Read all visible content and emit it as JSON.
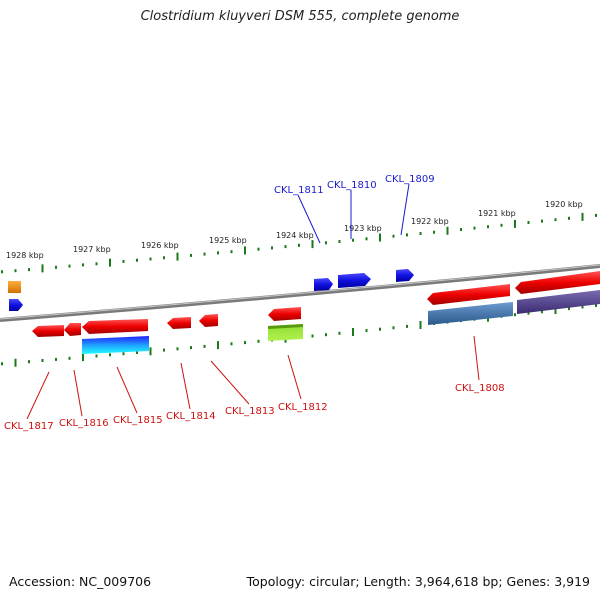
{
  "title": "Clostridium kluyveri DSM 555, complete genome",
  "footer": {
    "accession": "Accession: NC_009706",
    "summary": "Topology: circular; Length: 3,964,618 bp; Genes: 3,919"
  },
  "scale_labels": [
    "1928 kbp",
    "1927 kbp",
    "1926 kbp",
    "1925 kbp",
    "1924 kbp",
    "1923 kbp",
    "1922 kbp",
    "1921 kbp",
    "1920 kbp"
  ],
  "gene_labels": {
    "top": [
      "CKL_1811",
      "CKL_1810",
      "CKL_1809"
    ],
    "bottom": [
      "CKL_1817",
      "CKL_1816",
      "CKL_1815",
      "CKL_1814",
      "CKL_1813",
      "CKL_1812",
      "CKL_1808"
    ]
  },
  "colors": {
    "forward_gene_top": "#1010e0",
    "reverse_gene": "#e01010",
    "label_top": "#1a1acc",
    "label_bottom": "#cc1111",
    "tick": "#1a7a1a",
    "backbone": "#7a7a7a"
  }
}
